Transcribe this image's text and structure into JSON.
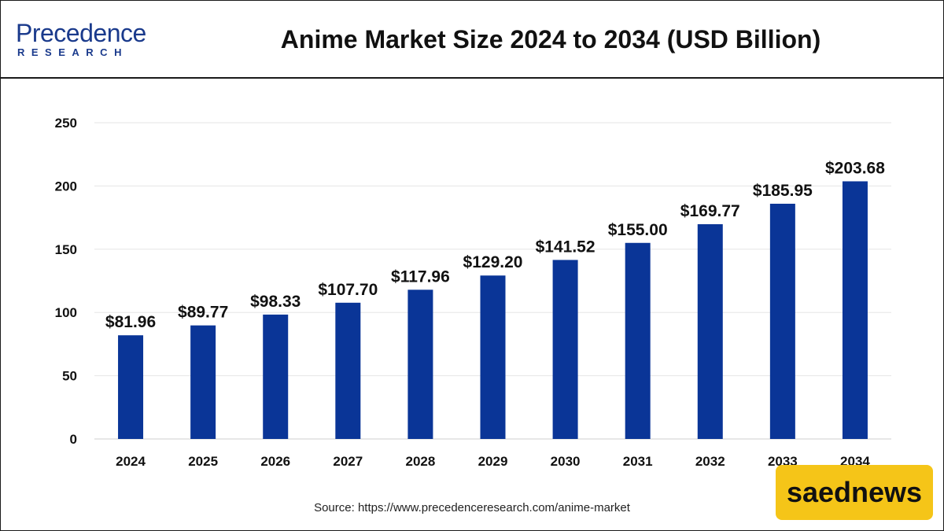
{
  "brand": {
    "logo_main": "Precedence",
    "logo_sub": "RESEARCH"
  },
  "title": "Anime Market Size 2024 to 2034 (USD Billion)",
  "source": "Source: https://www.precedenceresearch.com/anime-market",
  "watermark": "saednews",
  "colors": {
    "bar": "#0a3597",
    "brand": "#1a3a8c",
    "badge": "#f5c518"
  },
  "chart_data": {
    "type": "bar",
    "title": "Anime Market Size 2024 to 2034 (USD Billion)",
    "xlabel": "",
    "ylabel": "",
    "categories": [
      "2024",
      "2025",
      "2026",
      "2027",
      "2028",
      "2029",
      "2030",
      "2031",
      "2032",
      "2033",
      "2034"
    ],
    "values": [
      81.96,
      89.77,
      98.33,
      107.7,
      117.96,
      129.2,
      141.52,
      155.0,
      169.77,
      185.95,
      203.68
    ],
    "value_labels": [
      "$81.96",
      "$89.77",
      "$98.33",
      "$107.70",
      "$117.96",
      "$129.20",
      "$141.52",
      "$155.00",
      "$169.77",
      "$185.95",
      "$203.68"
    ],
    "yticks": [
      "0",
      "50",
      "100",
      "150",
      "200",
      "250"
    ],
    "ylim": [
      0,
      250
    ],
    "grid": true,
    "legend": "none"
  }
}
